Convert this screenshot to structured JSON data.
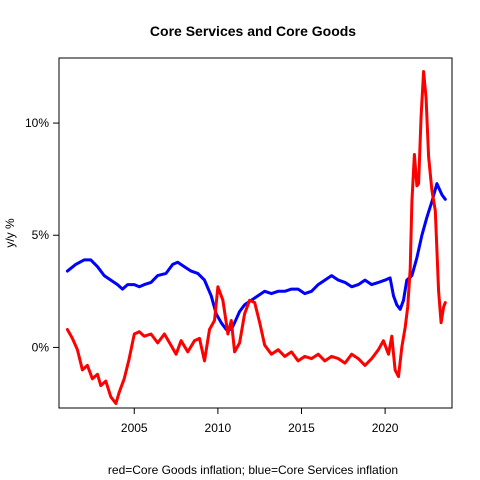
{
  "chart_data": {
    "type": "line",
    "title": "Core Services and Core Goods",
    "xlabel": "red=Core Goods inflation; blue=Core Services inflation",
    "ylabel": "y/y %",
    "xlim": [
      2000.5,
      2024.0
    ],
    "ylim": [
      -2.7,
      12.9
    ],
    "x_ticks": [
      2005,
      2010,
      2015,
      2020
    ],
    "x_tick_labels": [
      "2005",
      "2010",
      "2015",
      "2020"
    ],
    "y_ticks": [
      0,
      5,
      10
    ],
    "y_tick_labels": [
      "0%",
      "5%",
      "10%"
    ],
    "grid": false,
    "legend": "none",
    "series": [
      {
        "color": "#0000ff",
        "x": [
          2001.0,
          2001.5,
          2002.0,
          2002.4,
          2002.8,
          2003.2,
          2003.6,
          2004.0,
          2004.3,
          2004.6,
          2005.0,
          2005.3,
          2005.6,
          2006.0,
          2006.4,
          2006.9,
          2007.3,
          2007.6,
          2008.0,
          2008.4,
          2008.8,
          2009.2,
          2009.6,
          2009.9,
          2010.2,
          2010.5,
          2010.8,
          2011.0,
          2011.3,
          2011.6,
          2012.0,
          2012.4,
          2012.8,
          2013.2,
          2013.6,
          2014.0,
          2014.4,
          2014.8,
          2015.2,
          2015.6,
          2016.0,
          2016.4,
          2016.8,
          2017.2,
          2017.6,
          2018.0,
          2018.4,
          2018.8,
          2019.2,
          2019.6,
          2020.0,
          2020.3,
          2020.5,
          2020.7,
          2020.9,
          2021.1,
          2021.3,
          2021.6,
          2021.9,
          2022.2,
          2022.5,
          2022.8,
          2023.1,
          2023.4,
          2023.6
        ],
        "y": [
          3.4,
          3.7,
          3.9,
          3.9,
          3.6,
          3.2,
          3.0,
          2.8,
          2.6,
          2.8,
          2.8,
          2.7,
          2.8,
          2.9,
          3.2,
          3.3,
          3.7,
          3.8,
          3.6,
          3.4,
          3.3,
          3.0,
          2.3,
          1.5,
          1.1,
          0.8,
          0.8,
          1.1,
          1.6,
          1.9,
          2.1,
          2.3,
          2.5,
          2.4,
          2.5,
          2.5,
          2.6,
          2.6,
          2.4,
          2.5,
          2.8,
          3.0,
          3.2,
          3.0,
          2.9,
          2.7,
          2.8,
          3.0,
          2.8,
          2.9,
          3.0,
          3.1,
          2.3,
          1.9,
          1.7,
          2.1,
          3.0,
          3.2,
          4.0,
          5.0,
          5.8,
          6.5,
          7.3,
          6.8,
          6.6
        ]
      },
      {
        "color": "#ff0000",
        "x": [
          2001.0,
          2001.3,
          2001.6,
          2001.9,
          2002.2,
          2002.5,
          2002.8,
          2003.0,
          2003.3,
          2003.6,
          2003.9,
          2004.1,
          2004.4,
          2004.7,
          2005.0,
          2005.3,
          2005.6,
          2006.0,
          2006.4,
          2006.8,
          2007.2,
          2007.5,
          2007.8,
          2008.2,
          2008.6,
          2008.9,
          2009.2,
          2009.5,
          2009.8,
          2010.0,
          2010.3,
          2010.6,
          2010.8,
          2011.0,
          2011.3,
          2011.6,
          2011.9,
          2012.2,
          2012.5,
          2012.8,
          2013.2,
          2013.6,
          2014.0,
          2014.4,
          2014.8,
          2015.2,
          2015.6,
          2016.0,
          2016.4,
          2016.8,
          2017.2,
          2017.6,
          2018.0,
          2018.4,
          2018.8,
          2019.2,
          2019.6,
          2019.9,
          2020.2,
          2020.4,
          2020.6,
          2020.8,
          2021.0,
          2021.2,
          2021.35,
          2021.5,
          2021.6,
          2021.75,
          2021.9,
          2022.0,
          2022.15,
          2022.3,
          2022.45,
          2022.6,
          2022.8,
          2023.0,
          2023.2,
          2023.35,
          2023.5,
          2023.6
        ],
        "y": [
          0.8,
          0.4,
          -0.1,
          -1.0,
          -0.8,
          -1.4,
          -1.2,
          -1.7,
          -1.5,
          -2.2,
          -2.5,
          -2.0,
          -1.4,
          -0.5,
          0.6,
          0.7,
          0.5,
          0.6,
          0.2,
          0.6,
          0.1,
          -0.3,
          0.3,
          -0.2,
          0.3,
          0.4,
          -0.6,
          0.8,
          1.2,
          2.7,
          2.1,
          0.6,
          1.2,
          -0.2,
          0.2,
          1.5,
          2.1,
          2.0,
          1.1,
          0.1,
          -0.3,
          -0.1,
          -0.4,
          -0.2,
          -0.6,
          -0.4,
          -0.5,
          -0.3,
          -0.6,
          -0.4,
          -0.5,
          -0.7,
          -0.3,
          -0.5,
          -0.8,
          -0.5,
          -0.1,
          0.3,
          -0.3,
          0.5,
          -1.0,
          -1.3,
          0.0,
          0.9,
          1.8,
          3.5,
          6.5,
          8.6,
          7.2,
          7.3,
          10.3,
          12.3,
          11.1,
          8.5,
          7.0,
          6.1,
          2.5,
          1.1,
          1.8,
          2.0
        ]
      }
    ]
  }
}
